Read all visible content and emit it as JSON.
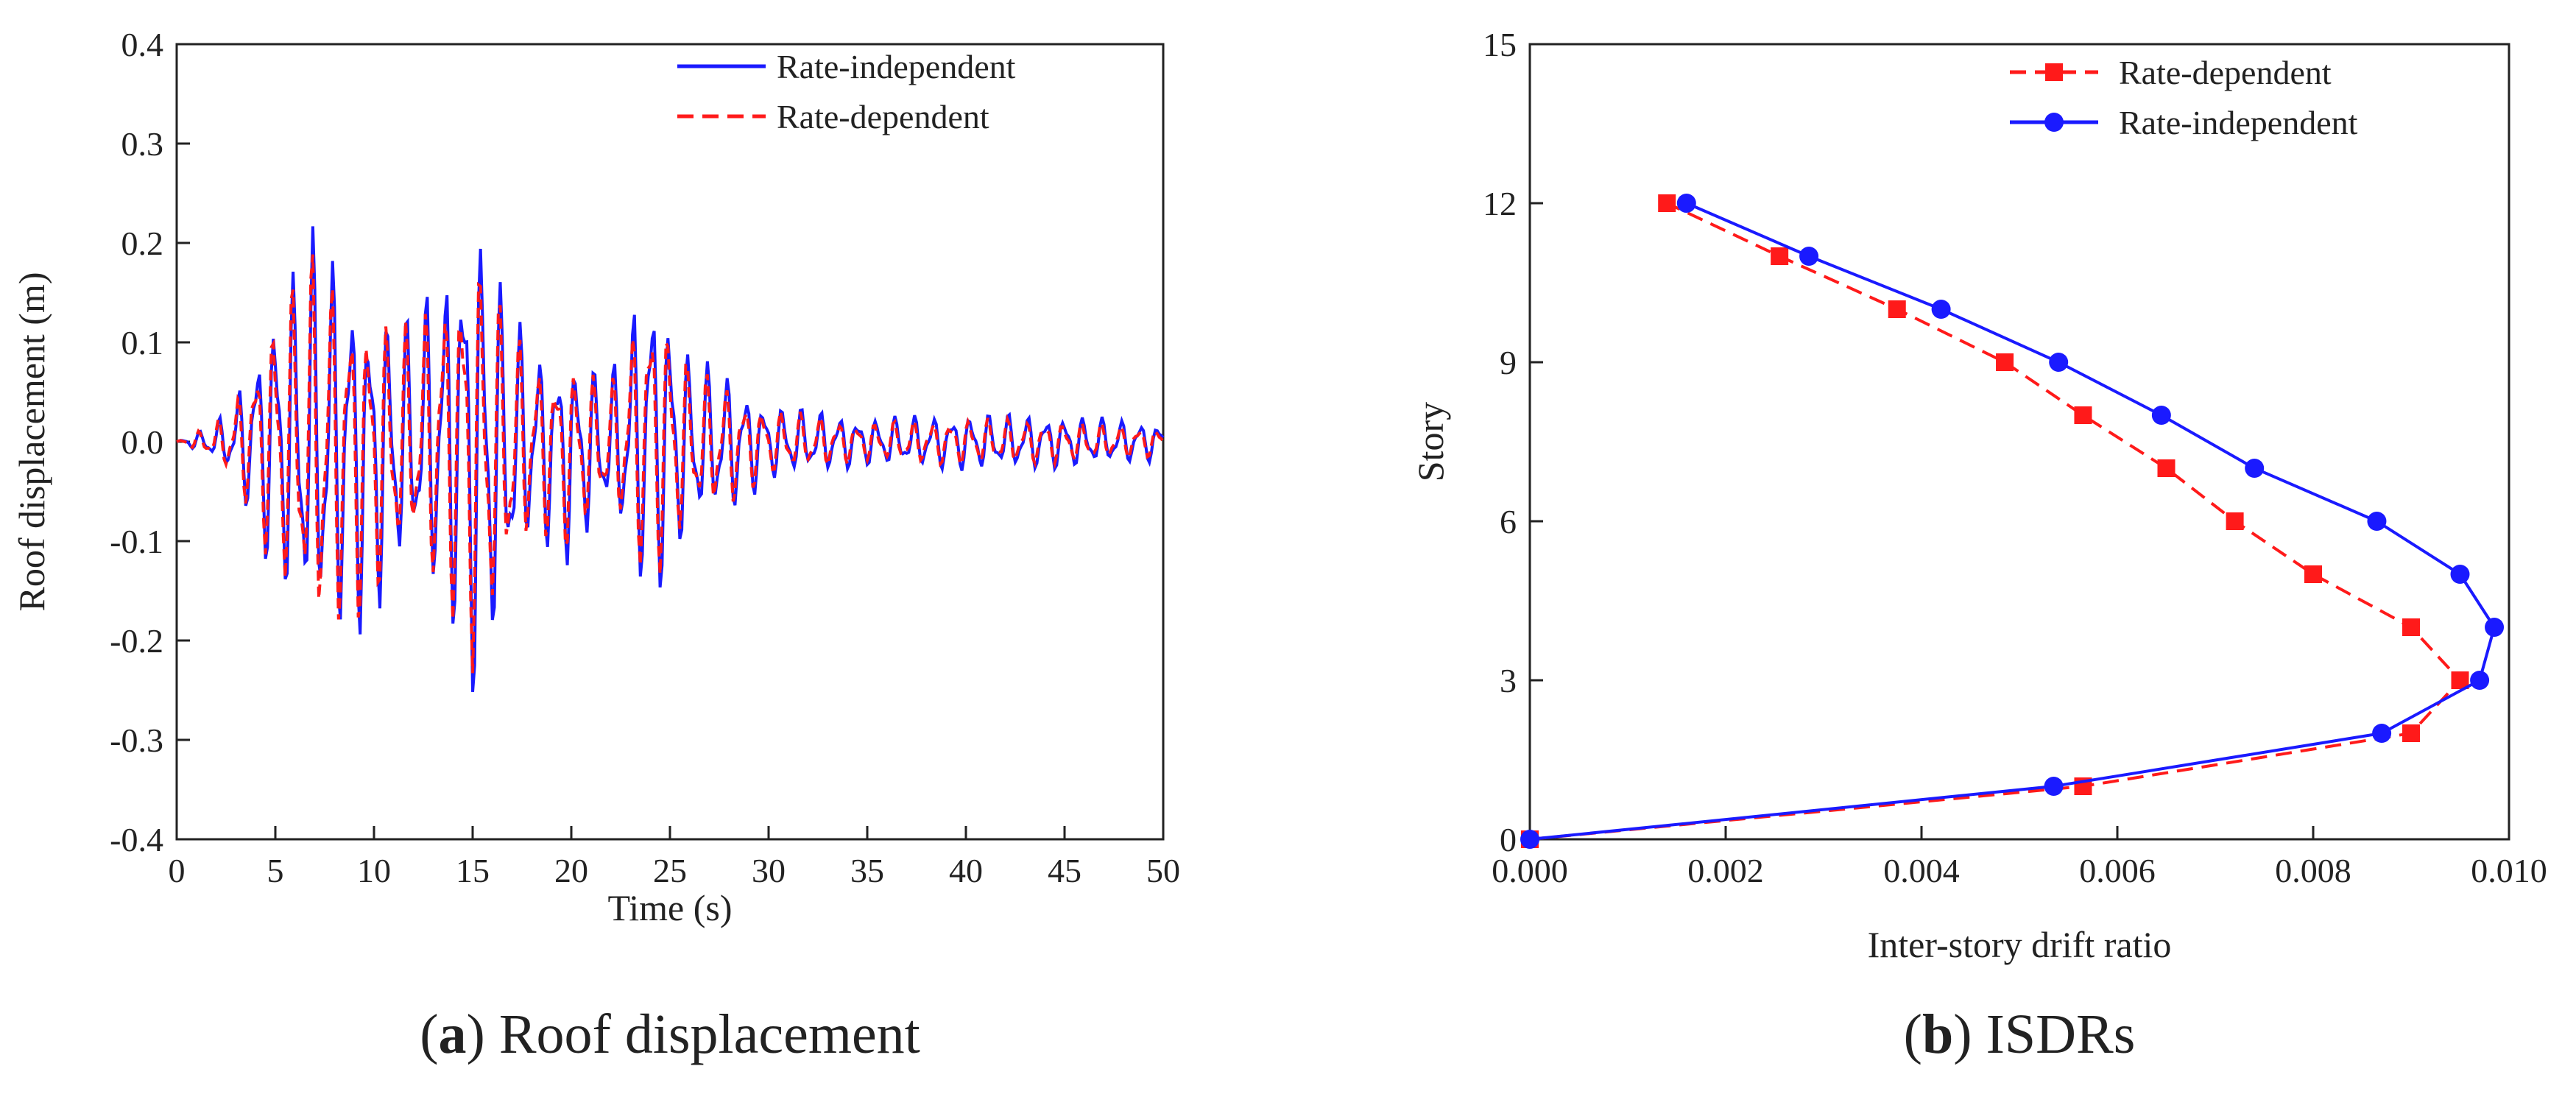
{
  "colors": {
    "blue": "#1a1aff",
    "red": "#ff1a1a",
    "axis": "#222222"
  },
  "chart_data": [
    {
      "type": "line",
      "caption_letter": "a",
      "caption_rest": " Roof displacement",
      "xlabel": "Time (s)",
      "ylabel": "Roof displacement (m)",
      "xlim": [
        0,
        50
      ],
      "ylim": [
        -0.4,
        0.4
      ],
      "xticks": [
        "0",
        "5",
        "10",
        "15",
        "20",
        "25",
        "30",
        "35",
        "40",
        "45",
        "50"
      ],
      "yticks": [
        "-0.4",
        "-0.3",
        "-0.2",
        "-0.1",
        "0.0",
        "0.1",
        "0.2",
        "0.3",
        "0.4"
      ],
      "grid": false,
      "legend_position": "top-right",
      "sample_interval_s": 0.1,
      "series": [
        {
          "name": "Rate-independent",
          "color": "#1a1aff",
          "style": "solid",
          "envelope": [
            [
              0,
              0
            ],
            [
              1,
              0.01
            ],
            [
              2,
              0.02
            ],
            [
              3,
              0.05
            ],
            [
              4,
              0.11
            ],
            [
              5,
              0.16
            ],
            [
              7,
              0.22
            ],
            [
              8,
              0.2
            ],
            [
              10,
              0.14
            ],
            [
              12,
              0.13
            ],
            [
              14,
              0.22
            ],
            [
              15,
              0.28
            ],
            [
              16,
              0.18
            ],
            [
              18,
              0.1
            ],
            [
              20,
              0.09
            ],
            [
              22,
              0.07
            ],
            [
              24,
              0.21
            ],
            [
              26,
              0.09
            ],
            [
              28,
              0.07
            ],
            [
              30,
              0.04
            ],
            [
              35,
              0.025
            ],
            [
              40,
              0.03
            ],
            [
              45,
              0.028
            ],
            [
              50,
              0.02
            ]
          ],
          "trough_envelope": [
            [
              0,
              0
            ],
            [
              1,
              -0.01
            ],
            [
              2,
              -0.02
            ],
            [
              3,
              -0.04
            ],
            [
              4,
              -0.1
            ],
            [
              5,
              -0.145
            ],
            [
              7,
              -0.23
            ],
            [
              8,
              -0.21
            ],
            [
              10,
              -0.19
            ],
            [
              12,
              -0.13
            ],
            [
              14,
              -0.19
            ],
            [
              15,
              -0.275
            ],
            [
              16,
              -0.25
            ],
            [
              18,
              -0.1
            ],
            [
              20,
              -0.13
            ],
            [
              22,
              -0.08
            ],
            [
              24,
              -0.17
            ],
            [
              26,
              -0.1
            ],
            [
              28,
              -0.08
            ],
            [
              30,
              -0.04
            ],
            [
              35,
              -0.025
            ],
            [
              40,
              -0.03
            ],
            [
              45,
              -0.028
            ],
            [
              50,
              -0.02
            ]
          ]
        },
        {
          "name": "Rate-dependent",
          "color": "#ff1a1a",
          "style": "dashed",
          "envelope": [
            [
              0,
              0
            ],
            [
              1,
              0.01
            ],
            [
              2,
              0.02
            ],
            [
              3,
              0.05
            ],
            [
              4,
              0.1
            ],
            [
              5,
              0.15
            ],
            [
              7,
              0.2
            ],
            [
              8,
              0.18
            ],
            [
              10,
              0.13
            ],
            [
              12,
              0.12
            ],
            [
              14,
              0.2
            ],
            [
              15,
              0.22
            ],
            [
              16,
              0.16
            ],
            [
              18,
              0.09
            ],
            [
              20,
              0.08
            ],
            [
              22,
              0.06
            ],
            [
              24,
              0.19
            ],
            [
              26,
              0.08
            ],
            [
              28,
              0.06
            ],
            [
              30,
              0.035
            ],
            [
              35,
              0.02
            ],
            [
              40,
              0.025
            ],
            [
              45,
              0.022
            ],
            [
              50,
              0.015
            ]
          ],
          "trough_envelope": [
            [
              0,
              0
            ],
            [
              1,
              -0.01
            ],
            [
              2,
              -0.02
            ],
            [
              3,
              -0.04
            ],
            [
              4,
              -0.09
            ],
            [
              5,
              -0.14
            ],
            [
              7,
              -0.235
            ],
            [
              8,
              -0.2
            ],
            [
              10,
              -0.18
            ],
            [
              12,
              -0.12
            ],
            [
              14,
              -0.18
            ],
            [
              15,
              -0.25
            ],
            [
              16,
              -0.22
            ],
            [
              18,
              -0.09
            ],
            [
              20,
              -0.12
            ],
            [
              22,
              -0.07
            ],
            [
              24,
              -0.15
            ],
            [
              26,
              -0.09
            ],
            [
              28,
              -0.07
            ],
            [
              30,
              -0.035
            ],
            [
              35,
              -0.02
            ],
            [
              40,
              -0.025
            ],
            [
              45,
              -0.022
            ],
            [
              50,
              -0.015
            ]
          ]
        }
      ]
    },
    {
      "type": "line",
      "caption_letter": "b",
      "caption_rest": " ISDRs",
      "xlabel": "Inter-story drift ratio",
      "ylabel": "Story",
      "xlim": [
        0,
        0.01
      ],
      "ylim": [
        0,
        15
      ],
      "xticks": [
        "0.000",
        "0.002",
        "0.004",
        "0.006",
        "0.008",
        "0.010"
      ],
      "yticks": [
        "0",
        "3",
        "6",
        "9",
        "12",
        "15"
      ],
      "grid": false,
      "legend_position": "top-right",
      "series": [
        {
          "name": "Rate-dependent",
          "color": "#ff1a1a",
          "style": "dashed",
          "marker": "square",
          "x": [
            0.0,
            0.00565,
            0.009,
            0.0095,
            0.009,
            0.008,
            0.0072,
            0.0065,
            0.00565,
            0.00485,
            0.00375,
            0.00255,
            0.0014
          ],
          "y": [
            0,
            1,
            2,
            3,
            4,
            5,
            6,
            7,
            8,
            9,
            10,
            11,
            12
          ]
        },
        {
          "name": "Rate-independent",
          "color": "#1a1aff",
          "style": "solid",
          "marker": "circle",
          "x": [
            0.0,
            0.00535,
            0.0087,
            0.0097,
            0.00985,
            0.0095,
            0.00865,
            0.0074,
            0.00645,
            0.0054,
            0.0042,
            0.00285,
            0.0016
          ],
          "y": [
            0,
            1,
            2,
            3,
            4,
            5,
            6,
            7,
            8,
            9,
            10,
            11,
            12
          ]
        }
      ]
    }
  ]
}
